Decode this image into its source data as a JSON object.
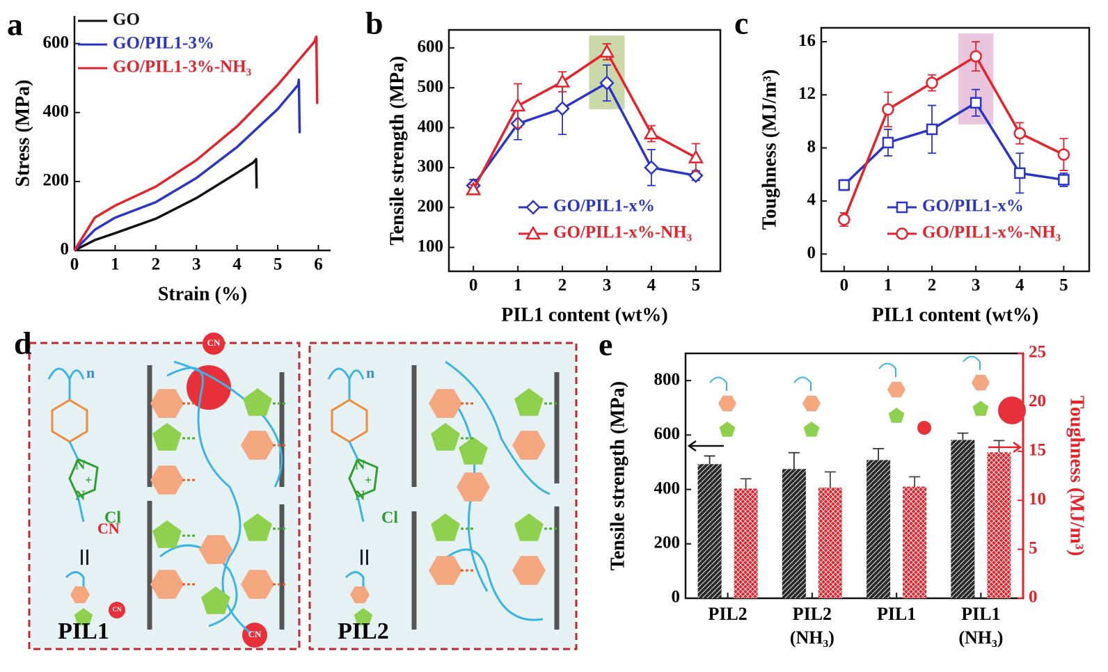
{
  "chart_data": [
    {
      "type": "line",
      "label": "a",
      "xlabel": "Strain (%)",
      "ylabel": "Stress (MPa)",
      "xlim": [
        0,
        6.3
      ],
      "ylim": [
        0,
        680
      ],
      "xticks": [
        0,
        1,
        2,
        3,
        4,
        5,
        6
      ],
      "yticks": [
        0,
        200,
        400,
        600
      ],
      "frame": "axes",
      "legend": "upper left",
      "series": [
        {
          "name": "GO",
          "color": "#111111",
          "x": [
            0,
            0.5,
            1,
            2,
            3,
            4,
            4.4,
            4.47,
            4.48
          ],
          "values": [
            0,
            30,
            50,
            92,
            152,
            225,
            255,
            265,
            180
          ]
        },
        {
          "name": "GO/PIL1-3%",
          "color": "#2a35c8",
          "x": [
            0,
            0.5,
            1,
            2,
            3,
            4,
            5,
            5.5,
            5.52,
            5.54
          ],
          "values": [
            0,
            60,
            95,
            140,
            210,
            300,
            410,
            480,
            495,
            340
          ]
        },
        {
          "name": "GO/PIL1-3%-NH₃",
          "color": "#e8202a",
          "x": [
            0,
            0.5,
            1,
            2,
            3,
            4,
            5,
            5.9,
            5.95,
            5.97
          ],
          "values": [
            0,
            95,
            130,
            185,
            262,
            360,
            480,
            605,
            620,
            425
          ]
        }
      ]
    },
    {
      "type": "line",
      "label": "b",
      "xlabel": "PIL1 content (wt%)",
      "ylabel": "Tensile strength (MPa)",
      "x": [
        0,
        1,
        2,
        3,
        4,
        5
      ],
      "xlim": [
        -0.55,
        5.55
      ],
      "ylim": [
        40,
        645
      ],
      "xticks": [
        0,
        1,
        2,
        3,
        4,
        5
      ],
      "yticks": [
        100,
        200,
        300,
        400,
        500,
        600
      ],
      "frame": "box",
      "legend": "lower right",
      "highlight": {
        "x": 3,
        "color": "#b9cc8e"
      },
      "series": [
        {
          "name": "GO/PIL1-x%",
          "color": "#2a35c8",
          "marker": "diamond",
          "values": [
            255,
            410,
            448,
            512,
            300,
            280
          ],
          "errors": [
            15,
            40,
            65,
            45,
            45,
            12
          ]
        },
        {
          "name": "GO/PIL1-x%-NH₃",
          "color": "#e8202a",
          "marker": "triangle",
          "values": [
            245,
            455,
            515,
            590,
            385,
            325
          ],
          "errors": [
            12,
            55,
            25,
            20,
            20,
            35
          ]
        }
      ]
    },
    {
      "type": "line",
      "label": "c",
      "xlabel": "PIL1 content (wt%)",
      "ylabel": "Toughness (MJ/m³)",
      "x": [
        0,
        1,
        2,
        3,
        4,
        5
      ],
      "xlim": [
        -0.52,
        5.58
      ],
      "ylim": [
        -1.3,
        17.05
      ],
      "xticks": [
        0,
        1,
        2,
        3,
        4,
        5
      ],
      "yticks": [
        0,
        4,
        8,
        12,
        16
      ],
      "frame": "box",
      "legend": "lower right",
      "highlight": {
        "x": 3,
        "color": "#e3b3d3"
      },
      "series": [
        {
          "name": "GO/PIL1-x%",
          "color": "#2a35c8",
          "marker": "square",
          "values": [
            5.2,
            8.4,
            9.4,
            11.4,
            6.1,
            5.6
          ],
          "errors": [
            0.4,
            1.0,
            1.8,
            1.0,
            1.5,
            0.5
          ]
        },
        {
          "name": "GO/PIL1-x%-NH₃",
          "color": "#e8202a",
          "marker": "circle",
          "values": [
            2.6,
            10.9,
            12.9,
            14.9,
            9.1,
            7.5
          ],
          "errors": [
            0.5,
            1.3,
            0.6,
            1.1,
            0.8,
            1.2
          ]
        }
      ]
    },
    {
      "type": "bar",
      "label": "e",
      "ylabel": "Tensile strength (MPa)",
      "y2label": "Toughness (MJ/m³)",
      "categories": [
        "PIL2",
        "PIL2\n(NH₃)",
        "PIL1",
        "PIL1\n(NH₃)"
      ],
      "ylim": [
        0,
        900
      ],
      "yticks": [
        0,
        200,
        400,
        600,
        800
      ],
      "y2lim": [
        0,
        25
      ],
      "y2ticks": [
        0,
        5,
        10,
        15,
        20,
        25
      ],
      "y2color": "#e8202a",
      "frame": "box",
      "series": [
        {
          "name": "Tensile strength",
          "color": "#2b2b2b",
          "hatch": "/",
          "values": [
            493,
            475,
            508,
            582
          ],
          "errors": [
            30,
            60,
            42,
            25
          ]
        },
        {
          "name": "Toughness",
          "color": "#e8202a",
          "hatch": "x",
          "axis": "y2",
          "values": [
            11.2,
            11.3,
            11.4,
            14.9
          ],
          "errors": [
            1.0,
            1.6,
            1.0,
            1.2
          ]
        }
      ]
    }
  ],
  "diagram": {
    "label": "d",
    "panels": [
      {
        "name": "PIL1",
        "repeat": "n",
        "ring_atom": "N",
        "charge": "+",
        "anion": "Cl",
        "group": "CN",
        "bead": "CN"
      },
      {
        "name": "PIL2",
        "repeat": "n",
        "ring_atom": "N",
        "charge": "+",
        "anion": "Cl"
      }
    ]
  }
}
